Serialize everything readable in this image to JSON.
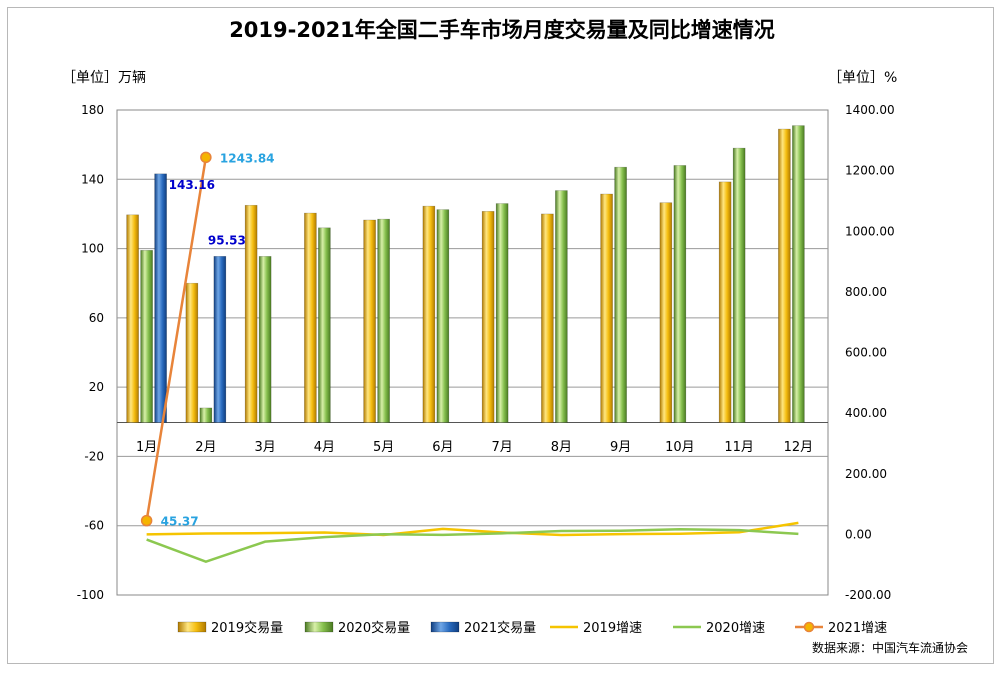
{
  "chart_data": {
    "type": "bar",
    "title": "2019-2021年全国二手车市场月度交易量及同比增速情况",
    "ylabel_left": "［单位］万辆",
    "ylabel_right": "［单位］%",
    "source": "数据来源：中国汽车流通协会",
    "categories": [
      "1月",
      "2月",
      "3月",
      "4月",
      "5月",
      "6月",
      "7月",
      "8月",
      "9月",
      "10月",
      "11月",
      "12月"
    ],
    "y_left": {
      "min": -100,
      "max": 180,
      "ticks": [
        180,
        140,
        100,
        60,
        20,
        -20,
        -60,
        -100
      ]
    },
    "y_right": {
      "min": -200,
      "max": 1400,
      "ticks": [
        "1400.00",
        "1200.00",
        "1000.00",
        "800.00",
        "600.00",
        "400.00",
        "200.00",
        "0.00",
        "-200.00"
      ]
    },
    "bar_series": [
      {
        "name": "2019交易量",
        "color": "#f0b400",
        "values": [
          119.5,
          80,
          125,
          120.5,
          116.5,
          124.5,
          121.5,
          120,
          131.5,
          126.5,
          138.5,
          169
        ]
      },
      {
        "name": "2020交易量",
        "color": "#78b84a",
        "values": [
          99,
          8,
          95.5,
          112,
          117,
          122.5,
          126,
          133.5,
          147,
          148,
          158,
          171
        ]
      },
      {
        "name": "2021交易量",
        "color": "#1f5fa8",
        "values": [
          143.16,
          95.53,
          null,
          null,
          null,
          null,
          null,
          null,
          null,
          null,
          null,
          null
        ]
      }
    ],
    "line_series": [
      {
        "name": "2019增速",
        "color": "#f5c400",
        "values": [
          0,
          3,
          4,
          6,
          -2,
          18,
          6,
          -2,
          1,
          2,
          7,
          38
        ]
      },
      {
        "name": "2020增速",
        "color": "#8cc850",
        "values": [
          -17,
          -90,
          -24,
          -9,
          0.5,
          -1.5,
          3.5,
          11,
          12,
          17,
          14,
          1.5
        ]
      },
      {
        "name": "2021增速",
        "color": "#e8843a",
        "values": [
          45.37,
          1243.84,
          null,
          null,
          null,
          null,
          null,
          null,
          null,
          null,
          null,
          null
        ]
      }
    ],
    "data_labels": [
      {
        "text": "143.16",
        "series": "2021交易量",
        "index": 0,
        "color": "#0000cc"
      },
      {
        "text": "95.53",
        "series": "2021交易量",
        "index": 1,
        "color": "#0000cc"
      },
      {
        "text": "1243.84",
        "series": "2021增速",
        "index": 1,
        "color": "#29a3e0"
      },
      {
        "text": "45.37",
        "series": "2021增速",
        "index": 0,
        "color": "#29a3e0"
      }
    ],
    "grid": true,
    "legend_position": "bottom"
  }
}
